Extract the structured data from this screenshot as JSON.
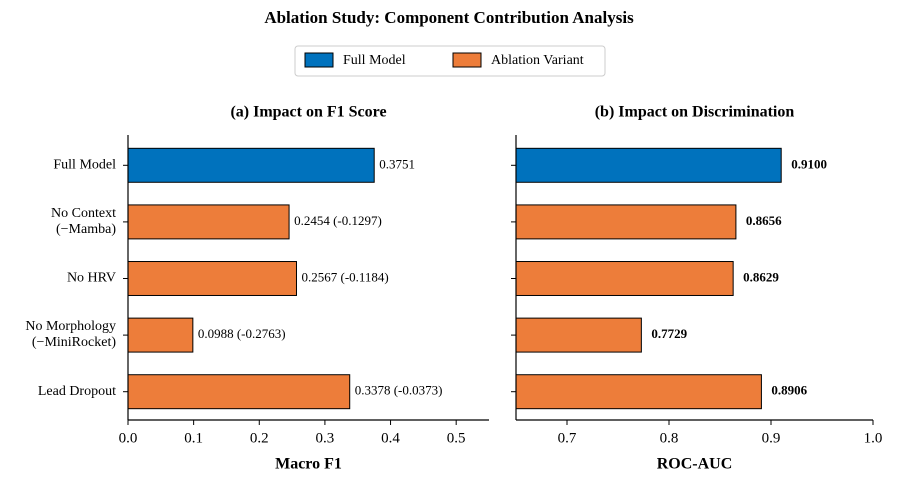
{
  "title": "Ablation Study: Component Contribution Analysis",
  "legend": [
    {
      "name": "Full Model",
      "color": "#0072bd"
    },
    {
      "name": "Ablation Variant",
      "color": "#ed7d3a"
    }
  ],
  "chart_data": [
    {
      "type": "barh",
      "title": "(a) Impact on F1 Score",
      "xlabel": "Macro F1",
      "categories": [
        "Full Model",
        "No Context\n(−Mamba)",
        "No HRV",
        "No Morphology\n(−MiniRocket)",
        "Lead Dropout"
      ],
      "values": [
        0.3751,
        0.2454,
        0.2567,
        0.0988,
        0.3378
      ],
      "value_labels": [
        "0.3751",
        "0.2454 (-0.1297)",
        "0.2567 (-0.1184)",
        "0.0988 (-0.2763)",
        "0.3378 (-0.0373)"
      ],
      "colors": [
        "#0072bd",
        "#ed7d3a",
        "#ed7d3a",
        "#ed7d3a",
        "#ed7d3a"
      ],
      "bold_labels": false,
      "show_category_labels": true,
      "xlim": [
        0,
        0.55
      ],
      "xticks": [
        {
          "value": 0,
          "label": "0.0"
        },
        0.1,
        0.2,
        0.3,
        0.4,
        0.5
      ]
    },
    {
      "type": "barh",
      "title": "(b) Impact on Discrimination",
      "xlabel": "ROC-AUC",
      "categories": [
        "Full Model",
        "No Context\n(−Mamba)",
        "No HRV",
        "No Morphology\n(−MiniRocket)",
        "Lead Dropout"
      ],
      "values": [
        0.91,
        0.8656,
        0.8629,
        0.7729,
        0.8906
      ],
      "value_labels": [
        "0.9100",
        "0.8656",
        "0.8629",
        "0.7729",
        "0.8906"
      ],
      "colors": [
        "#0072bd",
        "#ed7d3a",
        "#ed7d3a",
        "#ed7d3a",
        "#ed7d3a"
      ],
      "bold_labels": true,
      "show_category_labels": false,
      "xlim": [
        0.65,
        1.0
      ],
      "xticks": [
        0.7,
        0.8,
        0.9,
        {
          "value": 1,
          "label": "1.0"
        }
      ]
    }
  ]
}
